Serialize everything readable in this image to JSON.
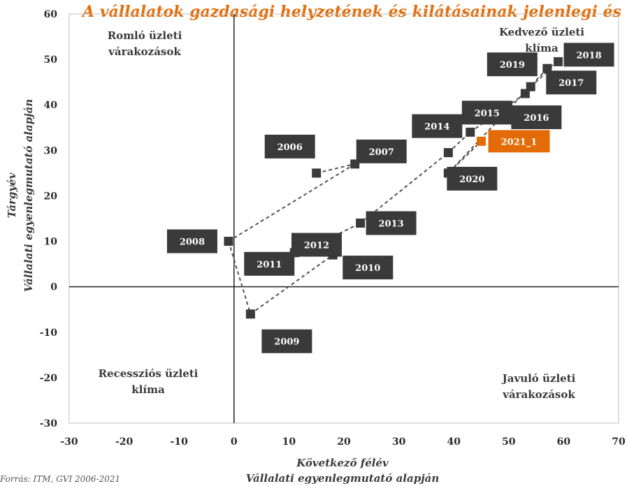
{
  "title": "A vállalatok gazdasági helyzetének és kilátásainak jelenlegi és várható alakulása",
  "source": "Forrás: ITM, GVI 2006-2021",
  "chart_data": {
    "type": "scatter",
    "xlim": [
      -30,
      70
    ],
    "ylim": [
      -30,
      60
    ],
    "xticks": [
      -30,
      -20,
      -10,
      0,
      10,
      20,
      30,
      40,
      50,
      60,
      70
    ],
    "yticks": [
      -30,
      -20,
      -10,
      0,
      10,
      20,
      30,
      40,
      50,
      60
    ],
    "xlabel": [
      "Következő félév",
      "Vállalati egyenlegmutató alapján"
    ],
    "ylabel": [
      "Tárgyév",
      "Vállalati egyenlegmutató alapján"
    ],
    "grid": false,
    "quadrants": {
      "top_left": [
        "Romló üzleti",
        "várakozások"
      ],
      "top_right": [
        "Kedvező üzleti",
        "klíma"
      ],
      "bottom_left": [
        "Recessziós üzleti",
        "klíma"
      ],
      "bottom_right": [
        "Javuló üzleti",
        "várakozások"
      ]
    },
    "marker_color": "#3a3a3a",
    "highlight_color": "#e36c09",
    "line_color": "#555555",
    "points": [
      {
        "label": "2006",
        "x": 15,
        "y": 25
      },
      {
        "label": "2007",
        "x": 22,
        "y": 27
      },
      {
        "label": "2008",
        "x": -1,
        "y": 10
      },
      {
        "label": "2009",
        "x": 3,
        "y": -6
      },
      {
        "label": "2010",
        "x": 18,
        "y": 7
      },
      {
        "label": "2011",
        "x": 11,
        "y": 7.5
      },
      {
        "label": "2012",
        "x": 13,
        "y": 8
      },
      {
        "label": "2013",
        "x": 23,
        "y": 14
      },
      {
        "label": "2014",
        "x": 39,
        "y": 29.5
      },
      {
        "label": "2015",
        "x": 43,
        "y": 34
      },
      {
        "label": "2016",
        "x": 53,
        "y": 42.5
      },
      {
        "label": "2017",
        "x": 54,
        "y": 44
      },
      {
        "label": "2018",
        "x": 59,
        "y": 49.5
      },
      {
        "label": "2019",
        "x": 57,
        "y": 48
      },
      {
        "label": "2020",
        "x": 39,
        "y": 25
      },
      {
        "label": "2021_1",
        "x": 45,
        "y": 32,
        "highlight": true
      }
    ]
  }
}
